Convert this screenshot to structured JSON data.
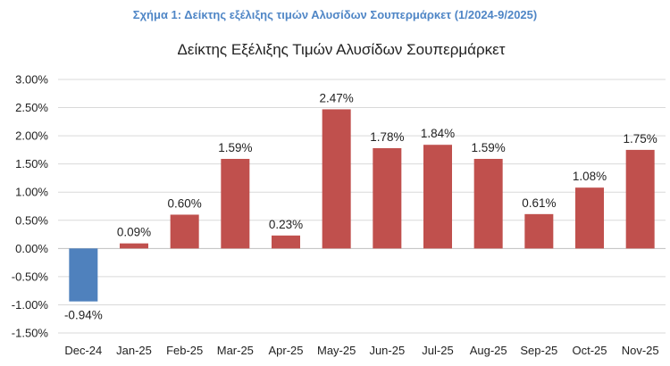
{
  "caption": "Σχήμα 1: Δείκτης εξέλιξης τιμών Αλυσίδων Σουπερμάρκετ (1/2024-9/2025)",
  "colors": {
    "positive": "#c0504d",
    "negative": "#4f81bd",
    "caption": "#4f86c6",
    "grid": "#d9d9d9"
  },
  "chart_data": {
    "type": "bar",
    "title": "Δείκτης Εξέλιξης Τιμών Αλυσίδων Σουπερμάρκετ",
    "xlabel": "",
    "ylabel": "",
    "categories": [
      "Dec-24",
      "Jan-25",
      "Feb-25",
      "Mar-25",
      "Apr-25",
      "May-25",
      "Jun-25",
      "Jul-25",
      "Aug-25",
      "Sep-25",
      "Oct-25",
      "Nov-25"
    ],
    "values": [
      -0.94,
      0.09,
      0.6,
      1.59,
      0.23,
      2.47,
      1.78,
      1.84,
      1.59,
      0.61,
      1.08,
      1.75
    ],
    "data_labels": [
      "-0.94%",
      "0.09%",
      "0.60%",
      "1.59%",
      "0.23%",
      "2.47%",
      "1.78%",
      "1.84%",
      "1.59%",
      "0.61%",
      "1.08%",
      "1.75%"
    ],
    "yticks": [
      3.0,
      2.5,
      2.0,
      1.5,
      1.0,
      0.5,
      0.0,
      -0.5,
      -1.0,
      -1.5
    ],
    "ytick_labels": [
      "3.00%",
      "2.50%",
      "2.00%",
      "1.50%",
      "1.00%",
      "0.50%",
      "0.00%",
      "-0.50%",
      "-1.00%",
      "-1.50%"
    ],
    "ylim": [
      -1.5,
      3.0
    ],
    "grid": true,
    "legend": "none"
  }
}
